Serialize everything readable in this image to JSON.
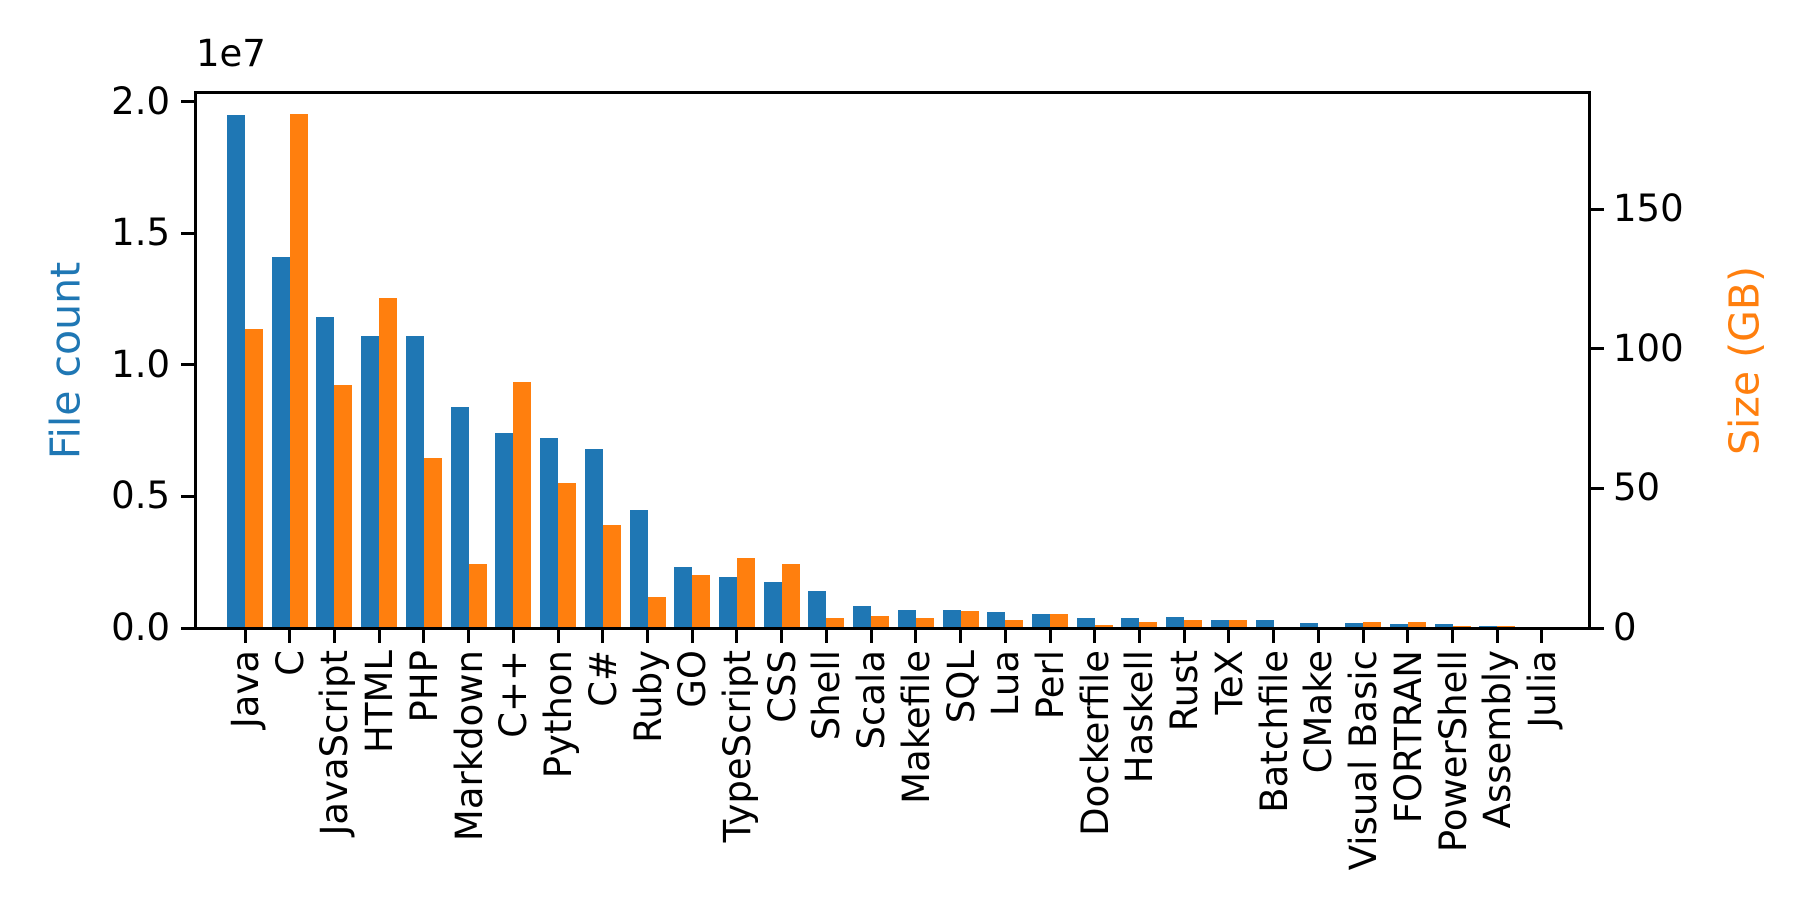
{
  "figure": {
    "background": "#ffffff"
  },
  "chart_data": {
    "type": "bar",
    "title": "",
    "grid": false,
    "legend": false,
    "categories": [
      "Java",
      "C",
      "JavaScript",
      "HTML",
      "PHP",
      "Markdown",
      "C++",
      "Python",
      "C#",
      "Ruby",
      "GO",
      "TypeScript",
      "CSS",
      "Shell",
      "Scala",
      "Makefile",
      "SQL",
      "Lua",
      "Perl",
      "Dockerfile",
      "Haskell",
      "Rust",
      "TeX",
      "Batchfile",
      "CMake",
      "Visual Basic",
      "FORTRAN",
      "PowerShell",
      "Assembly",
      "Julia"
    ],
    "series": [
      {
        "name": "File count",
        "axis": "left",
        "color": "#1f77b4",
        "values": [
          19500000,
          14100000,
          11800000,
          11100000,
          11100000,
          8400000,
          7400000,
          7200000,
          6800000,
          4500000,
          2300000,
          1950000,
          1750000,
          1400000,
          850000,
          700000,
          700000,
          620000,
          520000,
          380000,
          380000,
          420000,
          310000,
          290000,
          190000,
          190000,
          150000,
          150000,
          90000,
          50000
        ]
      },
      {
        "name": "Size (GB)",
        "axis": "right",
        "color": "#ff7f0e",
        "values": [
          107,
          184,
          87,
          118,
          61,
          23,
          88,
          52,
          37,
          11,
          19,
          25,
          23,
          3.5,
          4.4,
          3.5,
          6,
          3,
          5,
          1,
          2.2,
          2.8,
          2.8,
          0.4,
          0.4,
          2.2,
          2.2,
          0.7,
          0.8,
          0.3
        ]
      }
    ],
    "left_axis": {
      "label": "File count",
      "color": "#1f77b4",
      "offset_text": "1e7",
      "tick_labels": [
        "0.0",
        "0.5",
        "1.0",
        "1.5",
        "2.0"
      ],
      "tick_values": [
        0,
        5000000,
        10000000,
        15000000,
        20000000
      ],
      "range": [
        0,
        20400000
      ]
    },
    "right_axis": {
      "label": "Size (GB)",
      "color": "#ff7f0e",
      "tick_labels": [
        "0",
        "50",
        "100",
        "150"
      ],
      "tick_values": [
        0,
        50,
        100,
        150
      ],
      "range": [
        0,
        192
      ]
    },
    "x_axis": {
      "tick_label_rotation": 90
    }
  }
}
